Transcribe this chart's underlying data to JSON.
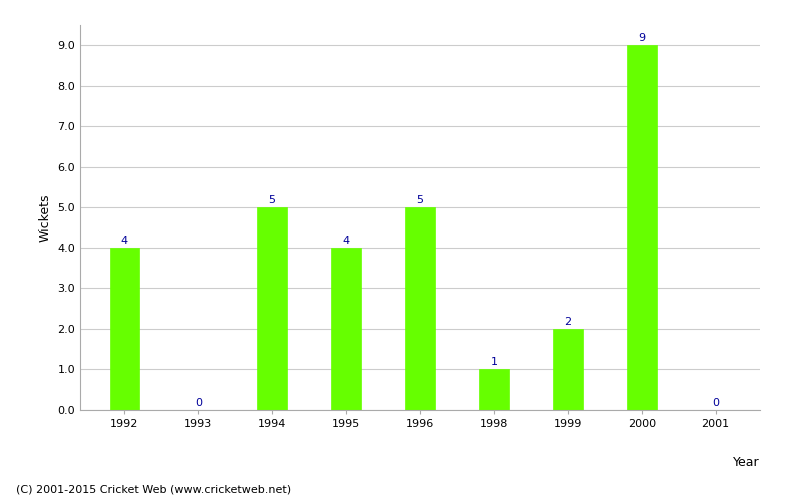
{
  "years": [
    "1992",
    "1993",
    "1994",
    "1995",
    "1996",
    "1998",
    "1999",
    "2000",
    "2001"
  ],
  "wickets": [
    4,
    0,
    5,
    4,
    5,
    1,
    2,
    9,
    0
  ],
  "bar_color": "#66ff00",
  "bar_edgecolor": "#66ff00",
  "xlabel": "Year",
  "ylabel": "Wickets",
  "ylim_max": 9.5,
  "yticks": [
    0.0,
    1.0,
    2.0,
    3.0,
    4.0,
    5.0,
    6.0,
    7.0,
    8.0,
    9.0
  ],
  "label_color": "#000099",
  "label_fontsize": 8,
  "xlabel_fontsize": 9,
  "ylabel_fontsize": 9,
  "tick_fontsize": 8,
  "background_color": "#ffffff",
  "grid_color": "#cccccc",
  "footer_text": "(C) 2001-2015 Cricket Web (www.cricketweb.net)",
  "footer_fontsize": 8,
  "bar_width": 0.4
}
